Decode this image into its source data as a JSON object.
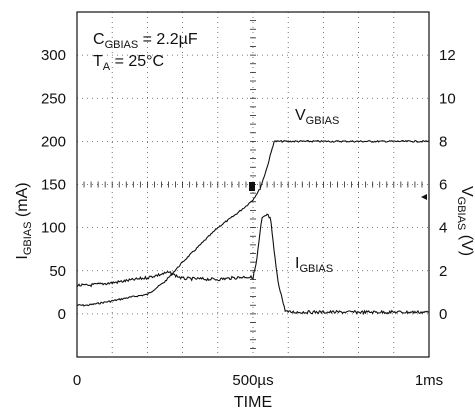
{
  "chart_data": {
    "type": "line",
    "annotations": {
      "cap_main": "C",
      "cap_sub": "GBIAS",
      "cap_rest": " = 2.2µF",
      "temp_main": "T",
      "temp_sub": "A",
      "temp_rest": " = 25°C"
    },
    "xlabel": "TIME",
    "x_ticks": [
      {
        "value": 0,
        "label": "0"
      },
      {
        "value": 500,
        "label": "500µs"
      },
      {
        "value": 1000,
        "label": "1ms"
      }
    ],
    "xlim": [
      0,
      1000
    ],
    "y_left": {
      "label_main": "I",
      "label_sub": "GBIAS",
      "label_rest": " (mA)",
      "ticks": [
        "0",
        "50",
        "100",
        "150",
        "200",
        "250",
        "300"
      ],
      "tick_values": [
        0,
        50,
        100,
        150,
        200,
        250,
        300
      ],
      "ylim": [
        -50,
        350
      ]
    },
    "y_right": {
      "label_main": "V",
      "label_sub": "GBIAS",
      "label_rest": " (V)",
      "ticks": [
        "0",
        "2",
        "4",
        "6",
        "8",
        "10",
        "12"
      ],
      "tick_values": [
        0,
        2,
        4,
        6,
        8,
        10,
        12
      ],
      "ylim": [
        -2,
        14
      ]
    },
    "grid": true,
    "series": [
      {
        "name_main": "V",
        "name_sub": "GBIAS",
        "axis": "right",
        "x": [
          0,
          30,
          100,
          160,
          200,
          250,
          300,
          350,
          400,
          450,
          480,
          500,
          520,
          540,
          560,
          600,
          700,
          800,
          900,
          1000
        ],
        "y": [
          0.4,
          0.4,
          0.6,
          0.8,
          0.9,
          1.5,
          2.4,
          3.2,
          4.0,
          4.6,
          5.0,
          5.3,
          5.8,
          6.8,
          8.0,
          8.0,
          8.0,
          8.0,
          8.0,
          8.0
        ]
      },
      {
        "name_main": "I",
        "name_sub": "GBIAS",
        "axis": "left",
        "x": [
          0,
          30,
          100,
          200,
          260,
          300,
          400,
          480,
          500,
          510,
          525,
          540,
          550,
          555,
          570,
          590,
          600,
          700,
          800,
          900,
          1000
        ],
        "y": [
          33,
          33,
          36,
          42,
          48,
          41,
          40,
          43,
          42,
          60,
          110,
          115,
          110,
          90,
          40,
          5,
          2,
          2,
          2,
          2,
          2
        ]
      }
    ]
  }
}
